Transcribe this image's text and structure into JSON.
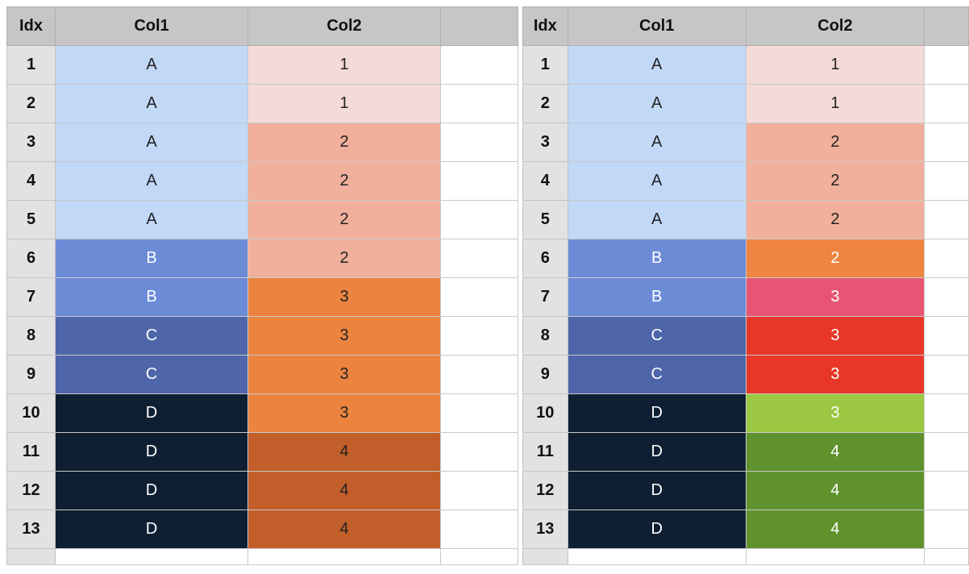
{
  "headers": {
    "idx": "Idx",
    "col1": "Col1",
    "col2": "Col2"
  },
  "left_sheet": {
    "rows": [
      {
        "idx": "1",
        "col1": "A",
        "col1_bg": "#c1d8f7",
        "col1_fg": "#222222",
        "col2": "1",
        "col2_bg": "#f4dbd8",
        "col2_fg": "#222222"
      },
      {
        "idx": "2",
        "col1": "A",
        "col1_bg": "#c1d8f7",
        "col1_fg": "#222222",
        "col2": "1",
        "col2_bg": "#f4dbd8",
        "col2_fg": "#222222"
      },
      {
        "idx": "3",
        "col1": "A",
        "col1_bg": "#c1d8f7",
        "col1_fg": "#222222",
        "col2": "2",
        "col2_bg": "#f0b09c",
        "col2_fg": "#222222"
      },
      {
        "idx": "4",
        "col1": "A",
        "col1_bg": "#c1d8f7",
        "col1_fg": "#222222",
        "col2": "2",
        "col2_bg": "#f0b09c",
        "col2_fg": "#222222"
      },
      {
        "idx": "5",
        "col1": "A",
        "col1_bg": "#c1d8f7",
        "col1_fg": "#222222",
        "col2": "2",
        "col2_bg": "#f0b09c",
        "col2_fg": "#222222"
      },
      {
        "idx": "6",
        "col1": "B",
        "col1_bg": "#6c8bd6",
        "col1_fg": "#ffffff",
        "col2": "2",
        "col2_bg": "#f0b09c",
        "col2_fg": "#222222"
      },
      {
        "idx": "7",
        "col1": "B",
        "col1_bg": "#6c8bd6",
        "col1_fg": "#ffffff",
        "col2": "3",
        "col2_bg": "#ec8440",
        "col2_fg": "#222222"
      },
      {
        "idx": "8",
        "col1": "C",
        "col1_bg": "#4e66a9",
        "col1_fg": "#ffffff",
        "col2": "3",
        "col2_bg": "#ec8440",
        "col2_fg": "#222222"
      },
      {
        "idx": "9",
        "col1": "C",
        "col1_bg": "#4e66a9",
        "col1_fg": "#ffffff",
        "col2": "3",
        "col2_bg": "#ec8440",
        "col2_fg": "#222222"
      },
      {
        "idx": "10",
        "col1": "D",
        "col1_bg": "#0f1f33",
        "col1_fg": "#ffffff",
        "col2": "3",
        "col2_bg": "#ec8440",
        "col2_fg": "#222222"
      },
      {
        "idx": "11",
        "col1": "D",
        "col1_bg": "#0f1f33",
        "col1_fg": "#ffffff",
        "col2": "4",
        "col2_bg": "#c25e2a",
        "col2_fg": "#222222"
      },
      {
        "idx": "12",
        "col1": "D",
        "col1_bg": "#0f1f33",
        "col1_fg": "#ffffff",
        "col2": "4",
        "col2_bg": "#c25e2a",
        "col2_fg": "#222222"
      },
      {
        "idx": "13",
        "col1": "D",
        "col1_bg": "#0f1f33",
        "col1_fg": "#ffffff",
        "col2": "4",
        "col2_bg": "#c25e2a",
        "col2_fg": "#222222"
      }
    ]
  },
  "right_sheet": {
    "rows": [
      {
        "idx": "1",
        "col1": "A",
        "col1_bg": "#c1d8f7",
        "col1_fg": "#222222",
        "col2": "1",
        "col2_bg": "#f4dbd8",
        "col2_fg": "#222222"
      },
      {
        "idx": "2",
        "col1": "A",
        "col1_bg": "#c1d8f7",
        "col1_fg": "#222222",
        "col2": "1",
        "col2_bg": "#f4dbd8",
        "col2_fg": "#222222"
      },
      {
        "idx": "3",
        "col1": "A",
        "col1_bg": "#c1d8f7",
        "col1_fg": "#222222",
        "col2": "2",
        "col2_bg": "#f0b09c",
        "col2_fg": "#222222"
      },
      {
        "idx": "4",
        "col1": "A",
        "col1_bg": "#c1d8f7",
        "col1_fg": "#222222",
        "col2": "2",
        "col2_bg": "#f0b09c",
        "col2_fg": "#222222"
      },
      {
        "idx": "5",
        "col1": "A",
        "col1_bg": "#c1d8f7",
        "col1_fg": "#222222",
        "col2": "2",
        "col2_bg": "#f0b09c",
        "col2_fg": "#222222"
      },
      {
        "idx": "6",
        "col1": "B",
        "col1_bg": "#6c8bd6",
        "col1_fg": "#ffffff",
        "col2": "2",
        "col2_bg": "#ef8540",
        "col2_fg": "#ffffff"
      },
      {
        "idx": "7",
        "col1": "B",
        "col1_bg": "#6c8bd6",
        "col1_fg": "#ffffff",
        "col2": "3",
        "col2_bg": "#e85574",
        "col2_fg": "#ffffff"
      },
      {
        "idx": "8",
        "col1": "C",
        "col1_bg": "#4e66a9",
        "col1_fg": "#ffffff",
        "col2": "3",
        "col2_bg": "#e83728",
        "col2_fg": "#ffffff"
      },
      {
        "idx": "9",
        "col1": "C",
        "col1_bg": "#4e66a9",
        "col1_fg": "#ffffff",
        "col2": "3",
        "col2_bg": "#e83728",
        "col2_fg": "#ffffff"
      },
      {
        "idx": "10",
        "col1": "D",
        "col1_bg": "#0f1f33",
        "col1_fg": "#ffffff",
        "col2": "3",
        "col2_bg": "#9cc742",
        "col2_fg": "#ffffff"
      },
      {
        "idx": "11",
        "col1": "D",
        "col1_bg": "#0f1f33",
        "col1_fg": "#ffffff",
        "col2": "4",
        "col2_bg": "#5f922c",
        "col2_fg": "#ffffff"
      },
      {
        "idx": "12",
        "col1": "D",
        "col1_bg": "#0f1f33",
        "col1_fg": "#ffffff",
        "col2": "4",
        "col2_bg": "#5f922c",
        "col2_fg": "#ffffff"
      },
      {
        "idx": "13",
        "col1": "D",
        "col1_bg": "#0f1f33",
        "col1_fg": "#ffffff",
        "col2": "4",
        "col2_bg": "#5f922c",
        "col2_fg": "#ffffff"
      }
    ]
  }
}
